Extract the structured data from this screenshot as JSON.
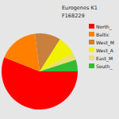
{
  "chart_data": {
    "type": "pie",
    "title": "Eurogenes K1",
    "subtitle": "F168229",
    "categories": [
      "North_",
      "Baltic",
      "West_M",
      "West_A",
      "East_M",
      "South_"
    ],
    "values": [
      56,
      17,
      11,
      8,
      3,
      5
    ],
    "colors": [
      "#ff0000",
      "#ff8000",
      "#c8803c",
      "#f2f200",
      "#e8e070",
      "#33bb33"
    ],
    "legend": "upper right"
  }
}
